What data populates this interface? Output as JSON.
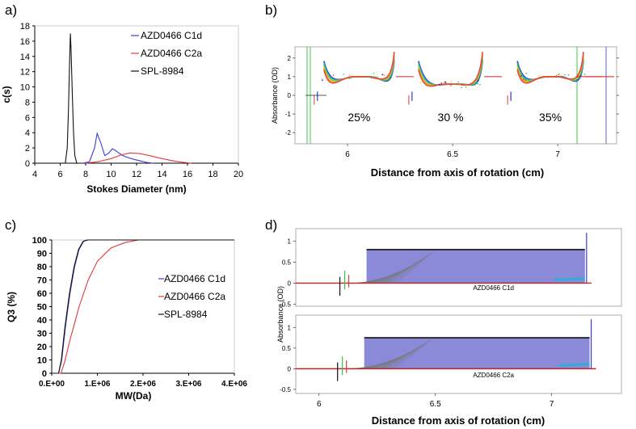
{
  "panels": {
    "a": "a)",
    "b": "b)",
    "c": "c)",
    "d": "d)"
  },
  "colors": {
    "blue": "#3a3ad8",
    "red": "#e03a3a",
    "black": "#111111",
    "green": "#3cc84a",
    "cyan": "#19b6d6",
    "gray": "#909090"
  },
  "chart_data": [
    {
      "id": "a",
      "type": "line",
      "xlabel": "Stokes Diameter (nm)",
      "ylabel": "c(s)",
      "xlim": [
        4,
        20
      ],
      "ylim": [
        0,
        18
      ],
      "xticks": [
        4,
        6,
        8,
        10,
        12,
        14,
        16,
        18,
        20
      ],
      "yticks": [
        0,
        2,
        4,
        6,
        8,
        10,
        12,
        14,
        16,
        18
      ],
      "legend_position": "top-right",
      "series": [
        {
          "name": "AZD0466 C1d",
          "color": "#3a3ad8",
          "x": [
            7.8,
            8.3,
            8.7,
            8.9,
            9.2,
            9.5,
            9.8,
            10.1,
            10.4,
            10.8,
            11.2,
            11.8,
            12.3,
            12.8,
            13.3
          ],
          "y": [
            0,
            0.2,
            2.0,
            3.9,
            2.6,
            1.0,
            1.3,
            1.9,
            1.6,
            1.1,
            0.8,
            0.5,
            0.3,
            0.1,
            0
          ]
        },
        {
          "name": "AZD0466 C2a",
          "color": "#e03a3a",
          "x": [
            8.0,
            9.0,
            10.0,
            10.8,
            11.5,
            12.3,
            13.0,
            14.0,
            15.0,
            16.0,
            16.3
          ],
          "y": [
            0,
            0.2,
            0.6,
            1.1,
            1.35,
            1.25,
            1.0,
            0.6,
            0.25,
            0.05,
            0
          ]
        },
        {
          "name": "SPL-8984",
          "color": "#111111",
          "x": [
            6.4,
            6.55,
            6.65,
            6.75,
            6.8,
            6.85,
            6.95,
            7.05,
            7.15,
            7.3
          ],
          "y": [
            0,
            2.0,
            7.0,
            14.0,
            17.0,
            15.0,
            9.0,
            4.0,
            1.0,
            0
          ]
        }
      ]
    },
    {
      "id": "b",
      "type": "scatter",
      "xlabel": "Distance from axis of rotation (cm)",
      "ylabel": "Absorbance (OD)",
      "xlim": [
        5.75,
        7.28
      ],
      "ylim": [
        -2.6,
        2.6
      ],
      "xticks": [
        6,
        6.5,
        7
      ],
      "yticks": [
        -2,
        -1,
        0,
        1,
        2
      ],
      "annotations": [
        "25%",
        "30 %",
        "35%"
      ],
      "segments": [
        {
          "label": "25%",
          "x_start": 5.88,
          "x_end": 6.23,
          "plateau": 1.0
        },
        {
          "label": "30 %",
          "x_start": 6.33,
          "x_end": 6.65,
          "plateau": 0.6
        },
        {
          "label": "35%",
          "x_start": 6.8,
          "x_end": 7.13,
          "plateau": 1.0
        }
      ]
    },
    {
      "id": "c",
      "type": "line",
      "xlabel": "MW(Da)",
      "ylabel": "Q3 (%)",
      "xlim": [
        0,
        4000000
      ],
      "ylim": [
        0,
        100
      ],
      "xticks": [
        "0.E+00",
        "1.E+06",
        "2.E+06",
        "3.E+06",
        "4.E+06"
      ],
      "yticks": [
        0,
        10,
        20,
        30,
        40,
        50,
        60,
        70,
        80,
        90,
        100
      ],
      "legend_position": "right",
      "series": [
        {
          "name": "AZD0466 C1d",
          "color": "#3a3ad8",
          "x": [
            0,
            150000,
            220000,
            300000,
            400000,
            500000,
            600000,
            700000,
            800000,
            4000000
          ],
          "y": [
            0,
            0,
            10,
            35,
            60,
            80,
            93,
            99,
            100,
            100
          ]
        },
        {
          "name": "AZD0466 C2a",
          "color": "#e03a3a",
          "x": [
            0,
            200000,
            280000,
            400000,
            600000,
            800000,
            1000000,
            1300000,
            1600000,
            1900000,
            4000000
          ],
          "y": [
            0,
            0,
            8,
            25,
            50,
            70,
            84,
            94,
            98,
            100,
            100
          ]
        },
        {
          "name": "SPL-8984",
          "color": "#111111",
          "x": [
            0,
            150000,
            210000,
            290000,
            390000,
            490000,
            590000,
            690000,
            780000,
            4000000
          ],
          "y": [
            0,
            0,
            10,
            35,
            60,
            80,
            93,
            99,
            100,
            100
          ]
        }
      ]
    },
    {
      "id": "d",
      "type": "scatter",
      "xlabel": "Distance from axis of rotation (cm)",
      "ylabel": "Absorbance (OD)",
      "xlim": [
        5.9,
        7.3
      ],
      "xticks": [
        6,
        6.5,
        7
      ],
      "subplots": [
        {
          "name": "AZD0466 C1d",
          "ylim": [
            -0.55,
            1.3
          ],
          "yticks": [
            -0.5,
            0,
            0.5,
            1
          ],
          "plateau_top": 0.8,
          "meniscus": 6.1,
          "cell_bottom": 7.15
        },
        {
          "name": "AZD0466 C2a",
          "ylim": [
            -0.6,
            1.3
          ],
          "yticks": [
            -0.5,
            0,
            0.5,
            1
          ],
          "plateau_top": 0.75,
          "meniscus": 6.09,
          "cell_bottom": 7.17
        }
      ]
    }
  ]
}
